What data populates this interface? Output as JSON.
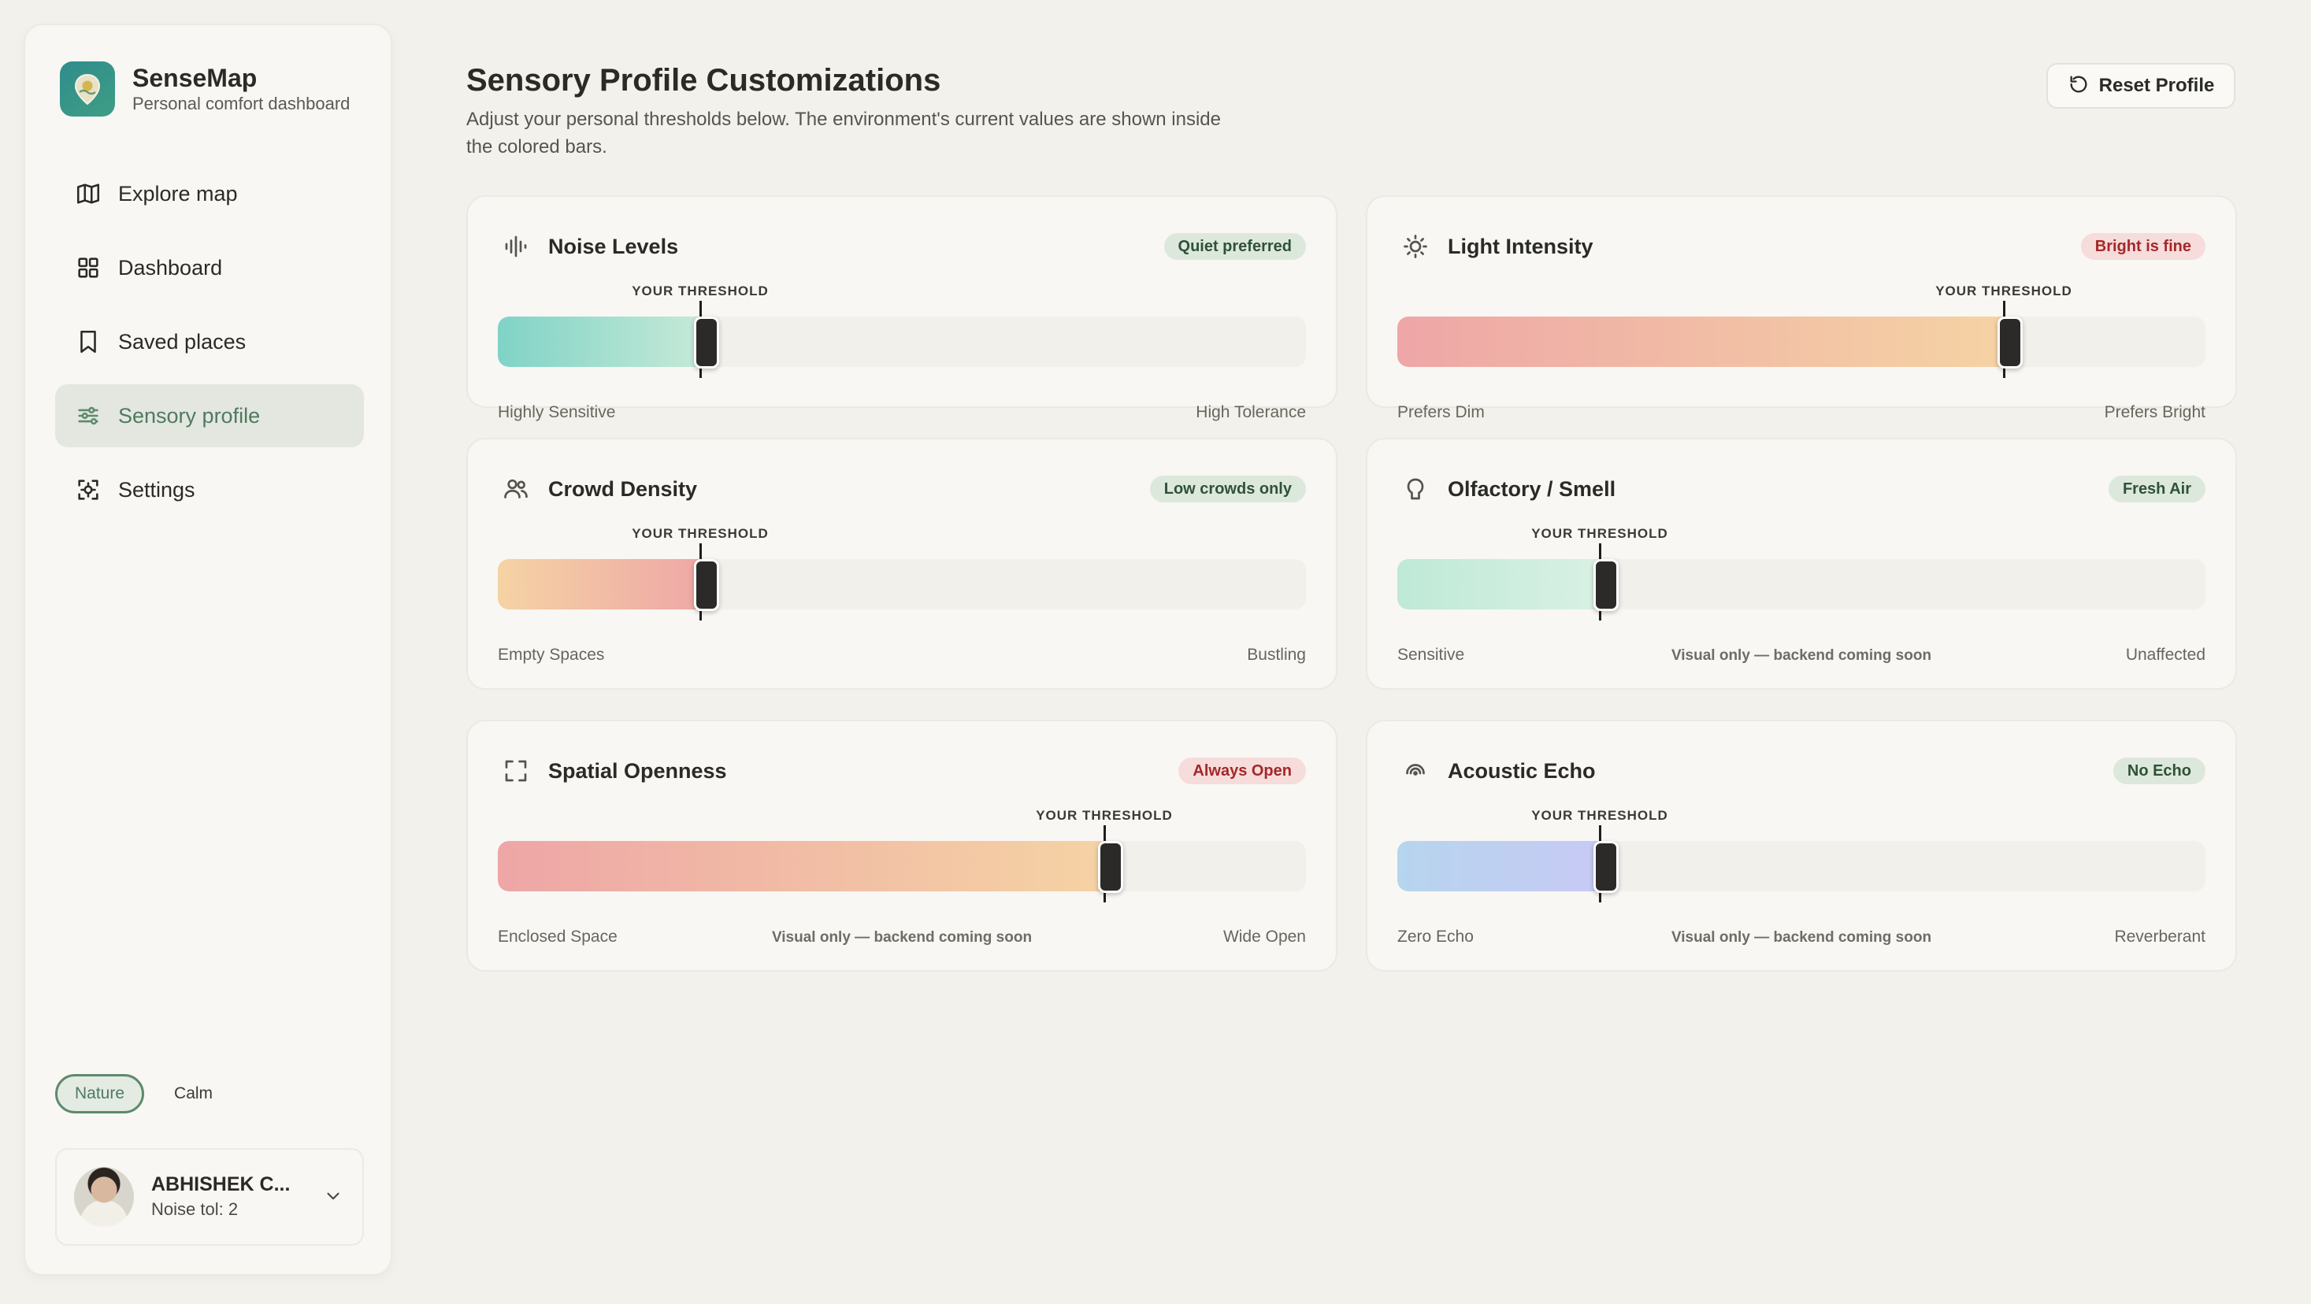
{
  "brand": {
    "name": "SenseMap",
    "subtitle": "Personal comfort dashboard"
  },
  "nav": [
    {
      "label": "Explore map",
      "icon": "map-icon",
      "active": false
    },
    {
      "label": "Dashboard",
      "icon": "grid-icon",
      "active": false
    },
    {
      "label": "Saved places",
      "icon": "bookmark-icon",
      "active": false
    },
    {
      "label": "Sensory profile",
      "icon": "sliders-icon",
      "active": true
    },
    {
      "label": "Settings",
      "icon": "gear-icon",
      "active": false
    }
  ],
  "modes": {
    "nature": "Nature",
    "calm": "Calm",
    "selected": "Nature"
  },
  "user": {
    "name": "ABHISHEK C...",
    "meta": "Noise tol: 2"
  },
  "page": {
    "title": "Sensory Profile Customizations",
    "description": "Adjust your personal thresholds below. The environment's current values are shown inside the colored bars.",
    "reset_label": "Reset Profile"
  },
  "threshold_label": "YOUR THRESHOLD",
  "cards": [
    {
      "title": "Noise Levels",
      "icon": "waveform-icon",
      "badge": "Quiet preferred",
      "badge_tone": "green",
      "threshold": 0.25,
      "fill_from": "#7fd3c6",
      "fill_to": "#c8ead8",
      "left_label": "Highly Sensitive",
      "right_label": "High Tolerance",
      "note": ""
    },
    {
      "title": "Light Intensity",
      "icon": "sun-icon",
      "badge": "Bright is fine",
      "badge_tone": "red",
      "threshold": 0.75,
      "fill_from": "#eea6a6",
      "fill_to": "#f5d3a4",
      "left_label": "Prefers Dim",
      "right_label": "Prefers Bright",
      "note": ""
    },
    {
      "title": "Crowd Density",
      "icon": "users-icon",
      "badge": "Low crowds only",
      "badge_tone": "green",
      "threshold": 0.25,
      "fill_from": "#f5d3a4",
      "fill_to": "#eea6a6",
      "left_label": "Empty Spaces",
      "right_label": "Bustling",
      "note": ""
    },
    {
      "title": "Olfactory / Smell",
      "icon": "nose-icon",
      "badge": "Fresh Air",
      "badge_tone": "green",
      "threshold": 0.25,
      "fill_from": "#bfe9d7",
      "fill_to": "#d9f1e4",
      "left_label": "Sensitive",
      "right_label": "Unaffected",
      "note": "Visual only — backend coming soon"
    },
    {
      "title": "Spatial Openness",
      "icon": "expand-icon",
      "badge": "Always Open",
      "badge_tone": "red",
      "threshold": 0.75,
      "fill_from": "#eea6a6",
      "fill_to": "#f5d3a4",
      "left_label": "Enclosed Space",
      "right_label": "Wide Open",
      "note": "Visual only — backend coming soon"
    },
    {
      "title": "Acoustic Echo",
      "icon": "echo-icon",
      "badge": "No Echo",
      "badge_tone": "green",
      "threshold": 0.25,
      "fill_from": "#b6d5ee",
      "fill_to": "#c8c9f5",
      "left_label": "Zero Echo",
      "right_label": "Reverberant",
      "note": "Visual only — backend coming soon"
    }
  ]
}
